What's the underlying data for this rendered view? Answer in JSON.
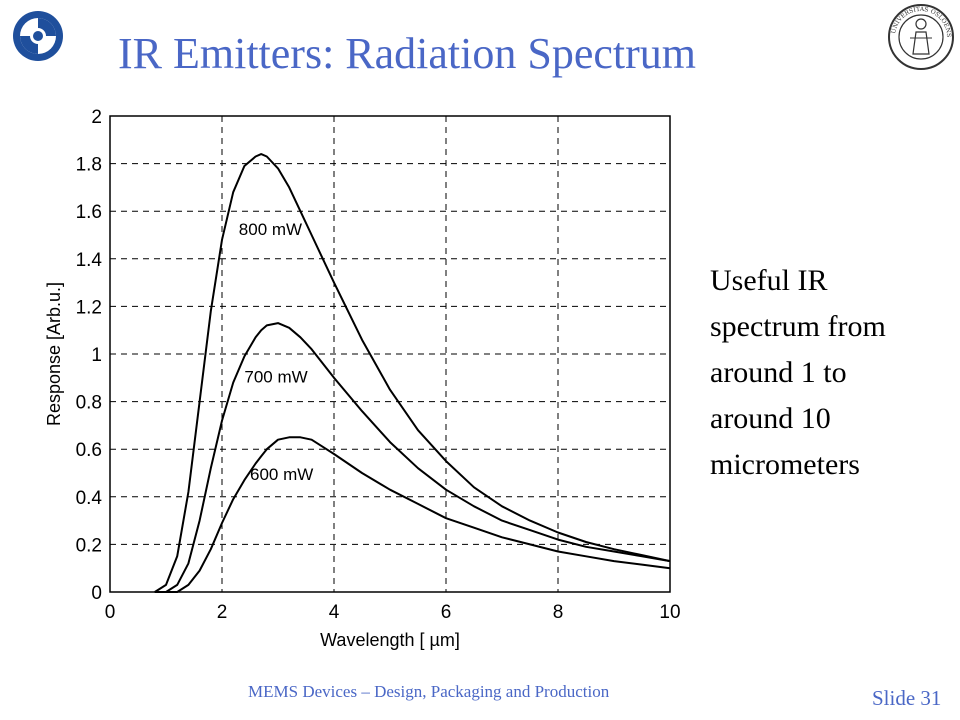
{
  "slide": {
    "title": "IR Emitters: Radiation Spectrum",
    "side_text": [
      "Useful IR",
      "spectrum from",
      "around 1 to",
      "around 10",
      "micrometers"
    ],
    "footer": "MEMS Devices – Design, Packaging and Production",
    "slide_number": "Slide 31",
    "logo_icon": "swirl-logo-icon",
    "seal_icon": "university-seal-icon",
    "seal_text": "UNIVERSITAS OSLOENSIS MDCCCXI",
    "accent_color": "#4a67c6"
  },
  "chart_data": {
    "type": "line",
    "title": "",
    "xlabel": "Wavelength [ µm]",
    "ylabel": "Response [Arb.u.]",
    "xlim": [
      0,
      10
    ],
    "ylim": [
      0,
      2
    ],
    "xticks": [
      0,
      2,
      4,
      6,
      8,
      10
    ],
    "yticks": [
      0,
      0.2,
      0.4,
      0.6,
      0.8,
      1,
      1.2,
      1.4,
      1.6,
      1.8,
      2
    ],
    "grid": true,
    "grid_style": "dashed",
    "x": [
      0.8,
      1.0,
      1.2,
      1.4,
      1.6,
      1.8,
      2.0,
      2.2,
      2.4,
      2.6,
      2.7,
      2.8,
      3.0,
      3.2,
      3.4,
      3.6,
      3.8,
      4.0,
      4.5,
      5.0,
      5.5,
      6.0,
      6.5,
      7.0,
      7.5,
      8.0,
      8.5,
      9.0,
      9.5,
      10.0
    ],
    "series": [
      {
        "name": "800 mW",
        "label_x": 2.3,
        "label_y": 1.5,
        "values": [
          0.0,
          0.03,
          0.15,
          0.42,
          0.8,
          1.18,
          1.48,
          1.68,
          1.79,
          1.83,
          1.84,
          1.83,
          1.78,
          1.7,
          1.6,
          1.5,
          1.4,
          1.3,
          1.06,
          0.85,
          0.68,
          0.55,
          0.44,
          0.36,
          0.3,
          0.25,
          0.21,
          0.18,
          0.155,
          0.13
        ]
      },
      {
        "name": "700 mW",
        "label_x": 2.4,
        "label_y": 0.88,
        "values": [
          0.0,
          0.0,
          0.03,
          0.12,
          0.3,
          0.52,
          0.72,
          0.88,
          0.99,
          1.07,
          1.1,
          1.12,
          1.13,
          1.11,
          1.07,
          1.02,
          0.96,
          0.9,
          0.76,
          0.63,
          0.52,
          0.43,
          0.36,
          0.3,
          0.26,
          0.22,
          0.19,
          0.17,
          0.15,
          0.13
        ]
      },
      {
        "name": "600 mW",
        "label_x": 2.5,
        "label_y": 0.47,
        "values": [
          0.0,
          0.0,
          0.0,
          0.03,
          0.09,
          0.18,
          0.29,
          0.39,
          0.47,
          0.54,
          0.57,
          0.6,
          0.64,
          0.65,
          0.65,
          0.64,
          0.61,
          0.58,
          0.5,
          0.43,
          0.37,
          0.31,
          0.27,
          0.23,
          0.2,
          0.17,
          0.15,
          0.13,
          0.115,
          0.1
        ]
      }
    ]
  }
}
